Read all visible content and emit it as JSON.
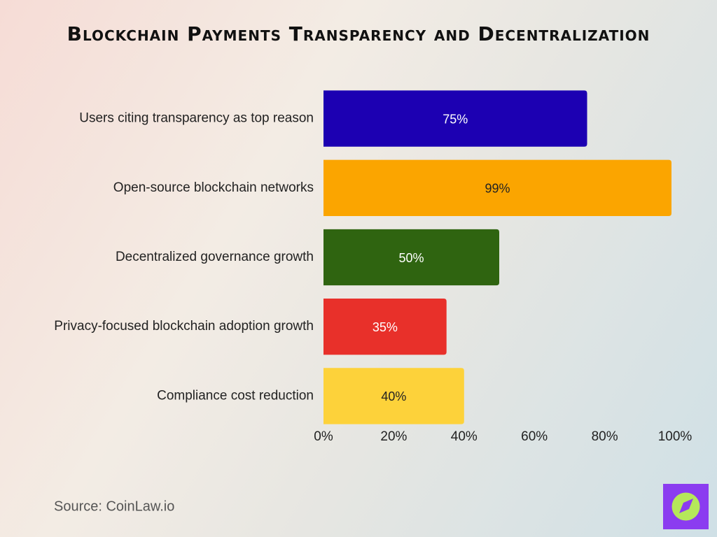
{
  "chart_data": {
    "type": "bar",
    "orientation": "horizontal",
    "title": "Blockchain Payments Transparency and Decentralization",
    "categories": [
      "Users citing transparency as top reason",
      "Open-source blockchain networks",
      "Decentralized governance growth",
      "Privacy-focused blockchain adoption growth",
      "Compliance cost reduction"
    ],
    "values": [
      75,
      99,
      50,
      35,
      40
    ],
    "value_labels": [
      "75%",
      "99%",
      "50%",
      "35%",
      "40%"
    ],
    "colors": [
      "#1c00b2",
      "#fba500",
      "#2f6410",
      "#e8302a",
      "#fdd23a"
    ],
    "xlim": [
      0,
      100
    ],
    "xticks": [
      {
        "value": 0,
        "label": "0%"
      },
      {
        "value": 20,
        "label": "20%"
      },
      {
        "value": 40,
        "label": "40%"
      },
      {
        "value": 60,
        "label": "60%"
      },
      {
        "value": 80,
        "label": "80%"
      },
      {
        "value": 100,
        "label": "100%"
      }
    ],
    "grid": false,
    "source": "Source: CoinLaw.io"
  }
}
